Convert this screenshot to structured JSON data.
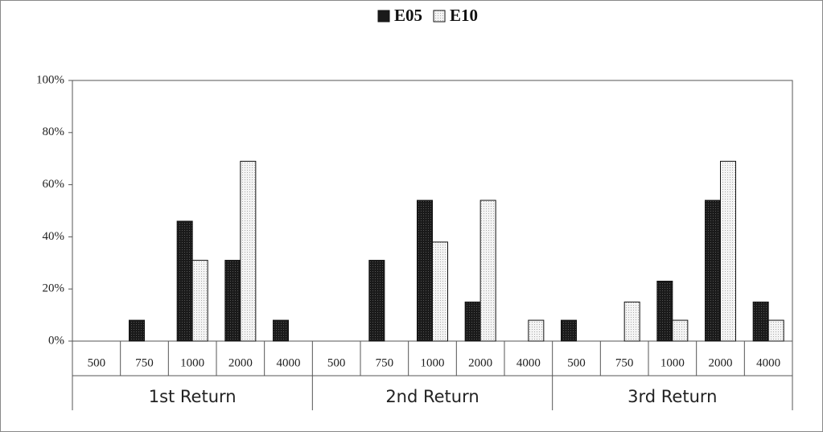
{
  "chart_data": {
    "type": "bar",
    "groups": [
      "1st Return",
      "2nd Return",
      "3rd Return"
    ],
    "categories": [
      "500",
      "750",
      "1000",
      "2000",
      "4000",
      "500",
      "750",
      "1000",
      "2000",
      "4000",
      "500",
      "750",
      "1000",
      "2000",
      "4000"
    ],
    "series": [
      {
        "name": "E05",
        "color": "#1a1a1a",
        "values": [
          0,
          8,
          46,
          31,
          8,
          0,
          31,
          54,
          15,
          0,
          8,
          0,
          23,
          54,
          15
        ]
      },
      {
        "name": "E10",
        "color": "#ececec",
        "values": [
          0,
          0,
          31,
          69,
          0,
          0,
          0,
          38,
          54,
          8,
          0,
          15,
          8,
          69,
          8
        ]
      }
    ],
    "ylim": [
      0,
      100
    ],
    "yticks": [
      {
        "value": 0,
        "label": "0%"
      },
      {
        "value": 20,
        "label": "20%"
      },
      {
        "value": 40,
        "label": "40%"
      },
      {
        "value": 60,
        "label": "60%"
      },
      {
        "value": 80,
        "label": "80%"
      },
      {
        "value": 100,
        "label": "100%"
      }
    ],
    "grid": false,
    "legend": "top"
  }
}
